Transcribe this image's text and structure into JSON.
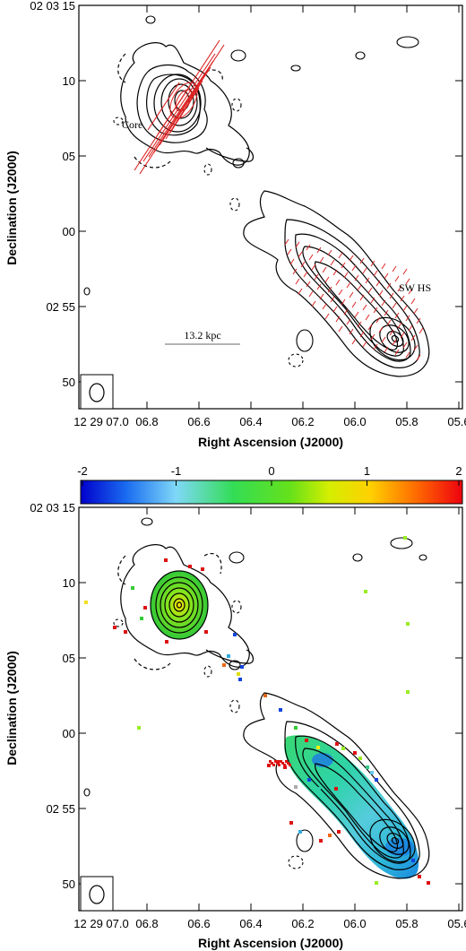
{
  "chart_data": [
    {
      "type": "contour",
      "title": "",
      "xlabel": "Right Ascension (J2000)",
      "ylabel": "Declination (J2000)",
      "x_ticks": [
        "12 29 07.0",
        "06.8",
        "06.6",
        "06.4",
        "06.2",
        "06.0",
        "05.8",
        "05.6"
      ],
      "y_ticks": [
        "02 03 15",
        "10",
        "05",
        "00",
        "02 55",
        "50"
      ],
      "annotations": {
        "core": "Core",
        "hotspot": "SW HS",
        "scale_bar": "13.2 kpc"
      },
      "polarization_vectors": true,
      "colors": {
        "contour": "#000000",
        "vectors": "#dd2222"
      }
    },
    {
      "type": "heatmap",
      "title": "",
      "xlabel": "Right Ascension (J2000)",
      "ylabel": "Declination (J2000)",
      "x_ticks": [
        "12 29 07.0",
        "06.8",
        "06.6",
        "06.4",
        "06.2",
        "06.0",
        "05.8",
        "05.6"
      ],
      "y_ticks": [
        "02 03 15",
        "10",
        "05",
        "00",
        "02 55",
        "50"
      ],
      "colorbar_ticks": [
        "-2",
        "-1",
        "0",
        "1",
        "2"
      ],
      "colorbar_range": [
        -2,
        2
      ],
      "colorbar_position": "top",
      "colors": {
        "contour": "#000000"
      }
    }
  ]
}
